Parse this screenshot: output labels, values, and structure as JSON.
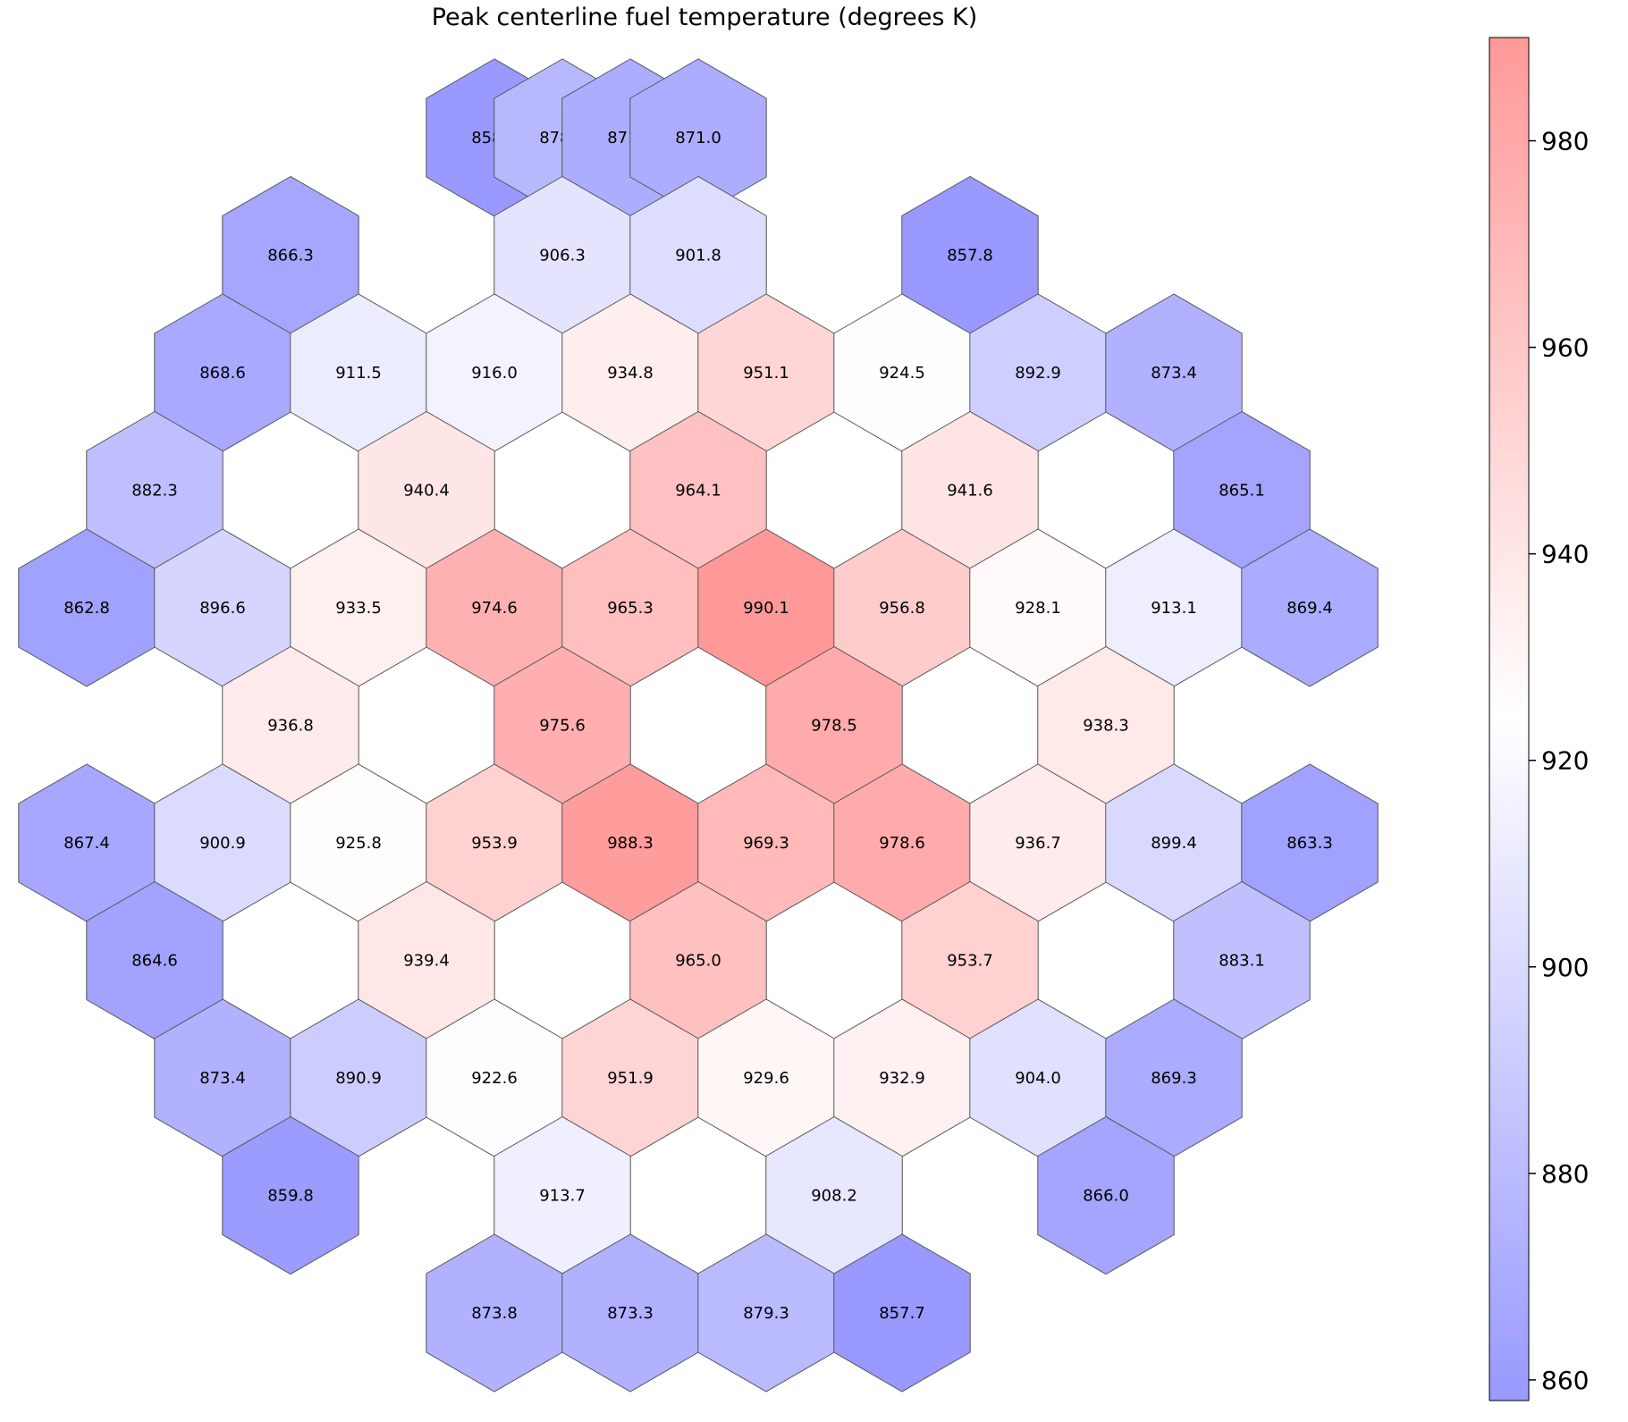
{
  "chart_data": {
    "type": "heatmap",
    "layout": "hexagonal assembly map",
    "title": "Peak centerline fuel temperature (degrees K)",
    "colormap": {
      "name": "bwr",
      "low_color": "#0000ff",
      "mid_color": "#ffffff",
      "high_color": "#ff0000",
      "alpha": 0.4
    },
    "color_range": [
      858,
      990
    ],
    "colorbar": {
      "ticks": [
        "860",
        "880",
        "900",
        "920",
        "940",
        "960",
        "980"
      ],
      "placement": "right"
    },
    "grid": false,
    "cells": [
      {
        "col": 6,
        "row": 0,
        "value": 858.0
      },
      {
        "col": 7,
        "row": 0,
        "value": 878.1
      },
      {
        "col": 8,
        "row": 0,
        "value": 871.2
      },
      {
        "col": 9,
        "row": 0,
        "value": 871.0
      },
      {
        "col": 3,
        "row": 1,
        "value": 866.3
      },
      {
        "col": 7,
        "row": 1,
        "value": 906.3
      },
      {
        "col": 9,
        "row": 1,
        "value": 901.8
      },
      {
        "col": 13,
        "row": 1,
        "value": 857.8
      },
      {
        "col": 2,
        "row": 2,
        "value": 868.6
      },
      {
        "col": 4,
        "row": 2,
        "value": 911.5
      },
      {
        "col": 6,
        "row": 2,
        "value": 916.0
      },
      {
        "col": 8,
        "row": 2,
        "value": 934.8
      },
      {
        "col": 10,
        "row": 2,
        "value": 951.1
      },
      {
        "col": 12,
        "row": 2,
        "value": 924.5
      },
      {
        "col": 14,
        "row": 2,
        "value": 892.9
      },
      {
        "col": 16,
        "row": 2,
        "value": 873.4
      },
      {
        "col": 1,
        "row": 3,
        "value": 882.3
      },
      {
        "col": 5,
        "row": 3,
        "value": 940.4
      },
      {
        "col": 9,
        "row": 3,
        "value": 964.1
      },
      {
        "col": 13,
        "row": 3,
        "value": 941.6
      },
      {
        "col": 17,
        "row": 3,
        "value": 865.1
      },
      {
        "col": 0,
        "row": 4,
        "value": 862.8
      },
      {
        "col": 2,
        "row": 4,
        "value": 896.6
      },
      {
        "col": 4,
        "row": 4,
        "value": 933.5
      },
      {
        "col": 6,
        "row": 4,
        "value": 974.6
      },
      {
        "col": 8,
        "row": 4,
        "value": 965.3
      },
      {
        "col": 10,
        "row": 4,
        "value": 990.1
      },
      {
        "col": 12,
        "row": 4,
        "value": 956.8
      },
      {
        "col": 14,
        "row": 4,
        "value": 928.1
      },
      {
        "col": 16,
        "row": 4,
        "value": 913.1
      },
      {
        "col": 18,
        "row": 4,
        "value": 869.4
      },
      {
        "col": 3,
        "row": 5,
        "value": 936.8
      },
      {
        "col": 7,
        "row": 5,
        "value": 975.6
      },
      {
        "col": 11,
        "row": 5,
        "value": 978.5
      },
      {
        "col": 15,
        "row": 5,
        "value": 938.3
      },
      {
        "col": 0,
        "row": 6,
        "value": 867.4
      },
      {
        "col": 2,
        "row": 6,
        "value": 900.9
      },
      {
        "col": 4,
        "row": 6,
        "value": 925.8
      },
      {
        "col": 6,
        "row": 6,
        "value": 953.9
      },
      {
        "col": 8,
        "row": 6,
        "value": 988.3
      },
      {
        "col": 10,
        "row": 6,
        "value": 969.3
      },
      {
        "col": 12,
        "row": 6,
        "value": 978.6
      },
      {
        "col": 14,
        "row": 6,
        "value": 936.7
      },
      {
        "col": 16,
        "row": 6,
        "value": 899.4
      },
      {
        "col": 18,
        "row": 6,
        "value": 863.3
      },
      {
        "col": 1,
        "row": 7,
        "value": 864.6
      },
      {
        "col": 5,
        "row": 7,
        "value": 939.4
      },
      {
        "col": 9,
        "row": 7,
        "value": 965.0
      },
      {
        "col": 13,
        "row": 7,
        "value": 953.7
      },
      {
        "col": 17,
        "row": 7,
        "value": 883.1
      },
      {
        "col": 2,
        "row": 8,
        "value": 873.4
      },
      {
        "col": 4,
        "row": 8,
        "value": 890.9
      },
      {
        "col": 6,
        "row": 8,
        "value": 922.6
      },
      {
        "col": 8,
        "row": 8,
        "value": 951.9
      },
      {
        "col": 10,
        "row": 8,
        "value": 929.6
      },
      {
        "col": 12,
        "row": 8,
        "value": 932.9
      },
      {
        "col": 14,
        "row": 8,
        "value": 904.0
      },
      {
        "col": 16,
        "row": 8,
        "value": 869.3
      },
      {
        "col": 3,
        "row": 9,
        "value": 859.8
      },
      {
        "col": 7,
        "row": 9,
        "value": 913.7
      },
      {
        "col": 11,
        "row": 9,
        "value": 908.2
      },
      {
        "col": 15,
        "row": 9,
        "value": 866.0
      },
      {
        "col": 6,
        "row": 10,
        "value": 873.8
      },
      {
        "col": 8,
        "row": 10,
        "value": 873.3
      },
      {
        "col": 10,
        "row": 10,
        "value": 879.3
      },
      {
        "col": 12,
        "row": 10,
        "value": 857.7
      }
    ]
  }
}
